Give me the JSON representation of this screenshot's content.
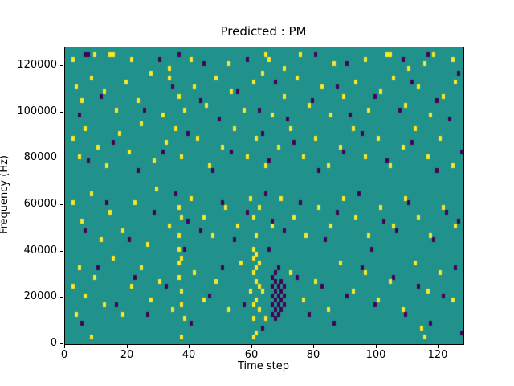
{
  "chart_data": {
    "type": "heatmap",
    "title": "Predicted : PM",
    "xlabel": "Time step",
    "ylabel": "Frequency (Hz)",
    "x_range": [
      0,
      128
    ],
    "y_range": [
      0,
      128000
    ],
    "x_ticks": [
      0,
      20,
      40,
      60,
      80,
      100,
      120
    ],
    "y_ticks": [
      0,
      20000,
      40000,
      60000,
      80000,
      100000,
      120000
    ],
    "grid": {
      "nx": 128,
      "ny": 64,
      "bin_hz": 2000
    },
    "legend": "none",
    "colors": {
      "background": "#21918c",
      "high": "#fde725",
      "low": "#440154"
    },
    "cells_yellow": [
      [
        2,
        61
      ],
      [
        9,
        62
      ],
      [
        14,
        62
      ],
      [
        15,
        62
      ],
      [
        21,
        61
      ],
      [
        40,
        61
      ],
      [
        52,
        60
      ],
      [
        64,
        62
      ],
      [
        65,
        61
      ],
      [
        75,
        62
      ],
      [
        86,
        60
      ],
      [
        96,
        61
      ],
      [
        103,
        62
      ],
      [
        104,
        62
      ],
      [
        115,
        60
      ],
      [
        118,
        62
      ],
      [
        124,
        61
      ],
      [
        33,
        59
      ],
      [
        70,
        59
      ],
      [
        110,
        59
      ],
      [
        3,
        55
      ],
      [
        5,
        52
      ],
      [
        8,
        57
      ],
      [
        12,
        54
      ],
      [
        16,
        50
      ],
      [
        19,
        56
      ],
      [
        23,
        52
      ],
      [
        27,
        58
      ],
      [
        31,
        49
      ],
      [
        33,
        57
      ],
      [
        36,
        53
      ],
      [
        38,
        50
      ],
      [
        41,
        55
      ],
      [
        45,
        51
      ],
      [
        48,
        57
      ],
      [
        53,
        54
      ],
      [
        57,
        50
      ],
      [
        60,
        56
      ],
      [
        63,
        58
      ],
      [
        66,
        49
      ],
      [
        70,
        53
      ],
      [
        74,
        57
      ],
      [
        78,
        51
      ],
      [
        82,
        55
      ],
      [
        85,
        49
      ],
      [
        89,
        53
      ],
      [
        93,
        56
      ],
      [
        97,
        50
      ],
      [
        101,
        54
      ],
      [
        105,
        57
      ],
      [
        109,
        51
      ],
      [
        113,
        55
      ],
      [
        117,
        49
      ],
      [
        121,
        53
      ],
      [
        125,
        56
      ],
      [
        2,
        44
      ],
      [
        4,
        40
      ],
      [
        6,
        46
      ],
      [
        10,
        42
      ],
      [
        13,
        38
      ],
      [
        17,
        45
      ],
      [
        20,
        41
      ],
      [
        24,
        47
      ],
      [
        28,
        39
      ],
      [
        32,
        43
      ],
      [
        35,
        46
      ],
      [
        37,
        40
      ],
      [
        42,
        44
      ],
      [
        46,
        38
      ],
      [
        50,
        42
      ],
      [
        54,
        46
      ],
      [
        58,
        40
      ],
      [
        61,
        44
      ],
      [
        64,
        38
      ],
      [
        68,
        42
      ],
      [
        72,
        46
      ],
      [
        76,
        40
      ],
      [
        80,
        44
      ],
      [
        84,
        38
      ],
      [
        88,
        42
      ],
      [
        92,
        46
      ],
      [
        96,
        40
      ],
      [
        100,
        44
      ],
      [
        104,
        38
      ],
      [
        108,
        42
      ],
      [
        112,
        46
      ],
      [
        116,
        40
      ],
      [
        120,
        44
      ],
      [
        124,
        38
      ],
      [
        2,
        30
      ],
      [
        5,
        26
      ],
      [
        8,
        32
      ],
      [
        11,
        22
      ],
      [
        14,
        28
      ],
      [
        18,
        24
      ],
      [
        22,
        30
      ],
      [
        26,
        21
      ],
      [
        29,
        33
      ],
      [
        33,
        25
      ],
      [
        36,
        29
      ],
      [
        36,
        23
      ],
      [
        37,
        27
      ],
      [
        40,
        31
      ],
      [
        44,
        27
      ],
      [
        47,
        23
      ],
      [
        51,
        29
      ],
      [
        55,
        25
      ],
      [
        59,
        31
      ],
      [
        60,
        27
      ],
      [
        61,
        23
      ],
      [
        62,
        29
      ],
      [
        66,
        25
      ],
      [
        69,
        31
      ],
      [
        73,
        27
      ],
      [
        77,
        23
      ],
      [
        81,
        29
      ],
      [
        85,
        25
      ],
      [
        89,
        31
      ],
      [
        93,
        27
      ],
      [
        97,
        23
      ],
      [
        101,
        29
      ],
      [
        105,
        25
      ],
      [
        109,
        31
      ],
      [
        113,
        27
      ],
      [
        117,
        23
      ],
      [
        121,
        29
      ],
      [
        125,
        25
      ],
      [
        2,
        12
      ],
      [
        3,
        6
      ],
      [
        4,
        16
      ],
      [
        6,
        10
      ],
      [
        9,
        14
      ],
      [
        12,
        8
      ],
      [
        15,
        18
      ],
      [
        18,
        6
      ],
      [
        21,
        12
      ],
      [
        24,
        16
      ],
      [
        27,
        9
      ],
      [
        30,
        13
      ],
      [
        34,
        7
      ],
      [
        36,
        17
      ],
      [
        36,
        14
      ],
      [
        36,
        20
      ],
      [
        37,
        11
      ],
      [
        37,
        18
      ],
      [
        37,
        8
      ],
      [
        38,
        5
      ],
      [
        41,
        15
      ],
      [
        44,
        9
      ],
      [
        48,
        13
      ],
      [
        52,
        7
      ],
      [
        56,
        17
      ],
      [
        59,
        11
      ],
      [
        60,
        5
      ],
      [
        60,
        15
      ],
      [
        60,
        8
      ],
      [
        60,
        18
      ],
      [
        60,
        20
      ],
      [
        61,
        9
      ],
      [
        61,
        13
      ],
      [
        61,
        16
      ],
      [
        61,
        19
      ],
      [
        62,
        7
      ],
      [
        62,
        17
      ],
      [
        62,
        12
      ],
      [
        63,
        11
      ],
      [
        64,
        5
      ],
      [
        72,
        15
      ],
      [
        76,
        9
      ],
      [
        80,
        13
      ],
      [
        84,
        7
      ],
      [
        88,
        17
      ],
      [
        92,
        11
      ],
      [
        96,
        15
      ],
      [
        100,
        9
      ],
      [
        104,
        13
      ],
      [
        108,
        7
      ],
      [
        112,
        17
      ],
      [
        114,
        3
      ],
      [
        116,
        11
      ],
      [
        120,
        15
      ],
      [
        124,
        9
      ],
      [
        8,
        1
      ],
      [
        37,
        1
      ],
      [
        60,
        1
      ],
      [
        61,
        2
      ],
      [
        115,
        1
      ]
    ],
    "cells_purple": [
      [
        6,
        62
      ],
      [
        7,
        62
      ],
      [
        30,
        61
      ],
      [
        36,
        62
      ],
      [
        44,
        60
      ],
      [
        58,
        61
      ],
      [
        80,
        62
      ],
      [
        90,
        60
      ],
      [
        108,
        61
      ],
      [
        116,
        62
      ],
      [
        126,
        58
      ],
      [
        4,
        49
      ],
      [
        11,
        53
      ],
      [
        25,
        50
      ],
      [
        34,
        55
      ],
      [
        43,
        52
      ],
      [
        49,
        48
      ],
      [
        55,
        54
      ],
      [
        62,
        50
      ],
      [
        67,
        56
      ],
      [
        71,
        48
      ],
      [
        79,
        52
      ],
      [
        87,
        55
      ],
      [
        91,
        49
      ],
      [
        99,
        53
      ],
      [
        107,
        50
      ],
      [
        111,
        56
      ],
      [
        119,
        52
      ],
      [
        123,
        48
      ],
      [
        7,
        39
      ],
      [
        15,
        43
      ],
      [
        23,
        37
      ],
      [
        31,
        41
      ],
      [
        39,
        45
      ],
      [
        47,
        37
      ],
      [
        53,
        41
      ],
      [
        63,
        45
      ],
      [
        65,
        39
      ],
      [
        73,
        43
      ],
      [
        81,
        37
      ],
      [
        89,
        41
      ],
      [
        95,
        45
      ],
      [
        103,
        39
      ],
      [
        111,
        43
      ],
      [
        119,
        37
      ],
      [
        127,
        41
      ],
      [
        6,
        24
      ],
      [
        13,
        30
      ],
      [
        20,
        22
      ],
      [
        28,
        28
      ],
      [
        35,
        32
      ],
      [
        38,
        20
      ],
      [
        39,
        26
      ],
      [
        43,
        24
      ],
      [
        50,
        30
      ],
      [
        54,
        22
      ],
      [
        58,
        28
      ],
      [
        64,
        32
      ],
      [
        65,
        20
      ],
      [
        66,
        26
      ],
      [
        70,
        24
      ],
      [
        75,
        30
      ],
      [
        83,
        22
      ],
      [
        87,
        28
      ],
      [
        94,
        32
      ],
      [
        98,
        20
      ],
      [
        102,
        26
      ],
      [
        106,
        24
      ],
      [
        110,
        30
      ],
      [
        118,
        22
      ],
      [
        122,
        28
      ],
      [
        126,
        26
      ],
      [
        66,
        6
      ],
      [
        66,
        8
      ],
      [
        66,
        10
      ],
      [
        66,
        12
      ],
      [
        66,
        14
      ],
      [
        67,
        5
      ],
      [
        67,
        7
      ],
      [
        67,
        9
      ],
      [
        67,
        11
      ],
      [
        67,
        13
      ],
      [
        67,
        15
      ],
      [
        68,
        6
      ],
      [
        68,
        8
      ],
      [
        68,
        10
      ],
      [
        68,
        12
      ],
      [
        68,
        16
      ],
      [
        69,
        7
      ],
      [
        69,
        9
      ],
      [
        69,
        11
      ],
      [
        69,
        13
      ],
      [
        70,
        8
      ],
      [
        70,
        10
      ],
      [
        70,
        12
      ],
      [
        5,
        4
      ],
      [
        10,
        16
      ],
      [
        16,
        8
      ],
      [
        22,
        14
      ],
      [
        26,
        6
      ],
      [
        32,
        12
      ],
      [
        40,
        4
      ],
      [
        46,
        10
      ],
      [
        50,
        16
      ],
      [
        57,
        8
      ],
      [
        63,
        3
      ],
      [
        74,
        14
      ],
      [
        78,
        6
      ],
      [
        82,
        12
      ],
      [
        86,
        4
      ],
      [
        90,
        10
      ],
      [
        95,
        16
      ],
      [
        99,
        8
      ],
      [
        105,
        14
      ],
      [
        109,
        6
      ],
      [
        113,
        12
      ],
      [
        117,
        4
      ],
      [
        121,
        10
      ],
      [
        125,
        16
      ],
      [
        127,
        2
      ]
    ]
  }
}
